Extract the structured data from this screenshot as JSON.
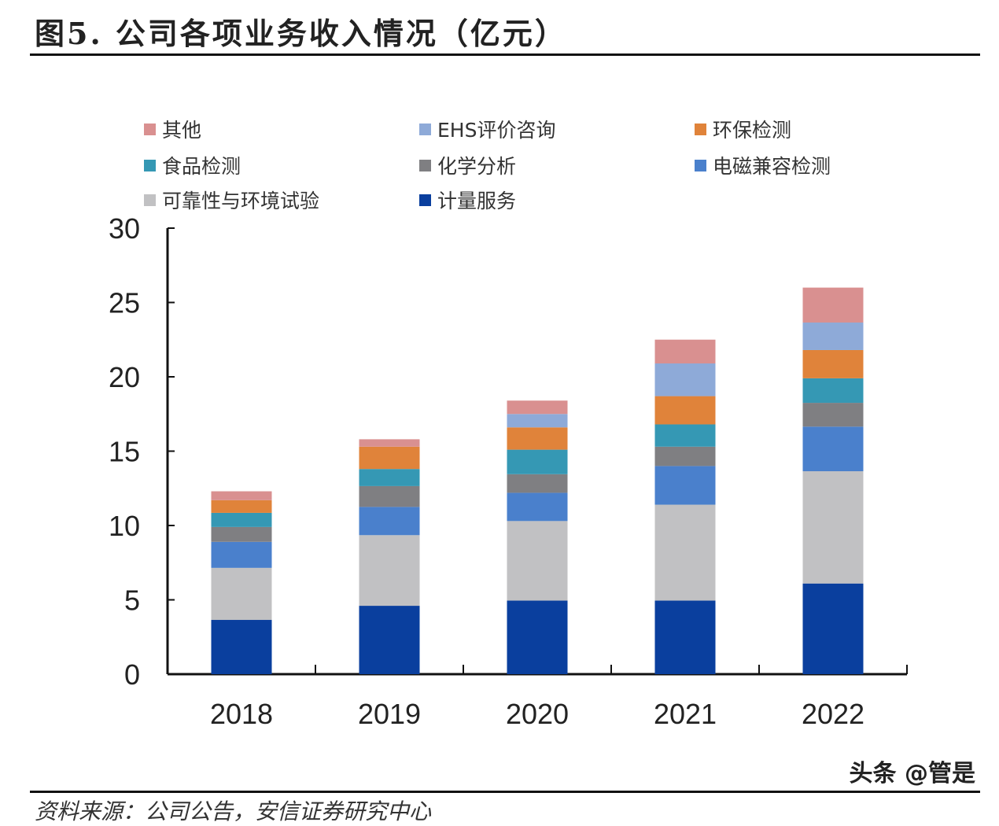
{
  "title": "图5. 公司各项业务收入情况（亿元）",
  "watermark": "头条 @管是",
  "source": "资料来源：公司公告，安信证券研究中心",
  "chart_data": {
    "type": "bar",
    "stacked": true,
    "title": "图5. 公司各项业务收入情况（亿元）",
    "categories": [
      "2018",
      "2019",
      "2020",
      "2021",
      "2022"
    ],
    "ylim": [
      0,
      30
    ],
    "yticks": [
      0,
      5,
      10,
      15,
      20,
      25,
      30
    ],
    "grid": false,
    "legend_position": "top",
    "series": [
      {
        "name": "计量服务",
        "color": "#0a3f9e",
        "values": [
          3.65,
          4.6,
          4.95,
          4.95,
          6.1
        ]
      },
      {
        "name": "可靠性与环境试验",
        "color": "#c1c1c3",
        "values": [
          3.5,
          4.75,
          5.35,
          6.45,
          7.55
        ]
      },
      {
        "name": "电磁兼容检测",
        "color": "#4a80cc",
        "values": [
          1.75,
          1.9,
          1.9,
          2.6,
          3.0
        ]
      },
      {
        "name": "化学分析",
        "color": "#7f7f82",
        "values": [
          1.0,
          1.4,
          1.25,
          1.3,
          1.6
        ]
      },
      {
        "name": "食品检测",
        "color": "#3598b4",
        "values": [
          0.95,
          1.15,
          1.65,
          1.5,
          1.65
        ]
      },
      {
        "name": "环保检测",
        "color": "#e0833a",
        "values": [
          0.85,
          1.5,
          1.5,
          1.9,
          1.9
        ]
      },
      {
        "name": "EHS评价咨询",
        "color": "#8eaad8",
        "values": [
          0,
          0,
          0.9,
          2.2,
          1.85
        ]
      },
      {
        "name": "其他",
        "color": "#d99090",
        "values": [
          0.6,
          0.5,
          0.9,
          1.6,
          2.35
        ]
      }
    ],
    "legend_order": [
      "其他",
      "EHS评价咨询",
      "环保检测",
      "食品检测",
      "化学分析",
      "电磁兼容检测",
      "可靠性与环境试验",
      "计量服务"
    ]
  }
}
